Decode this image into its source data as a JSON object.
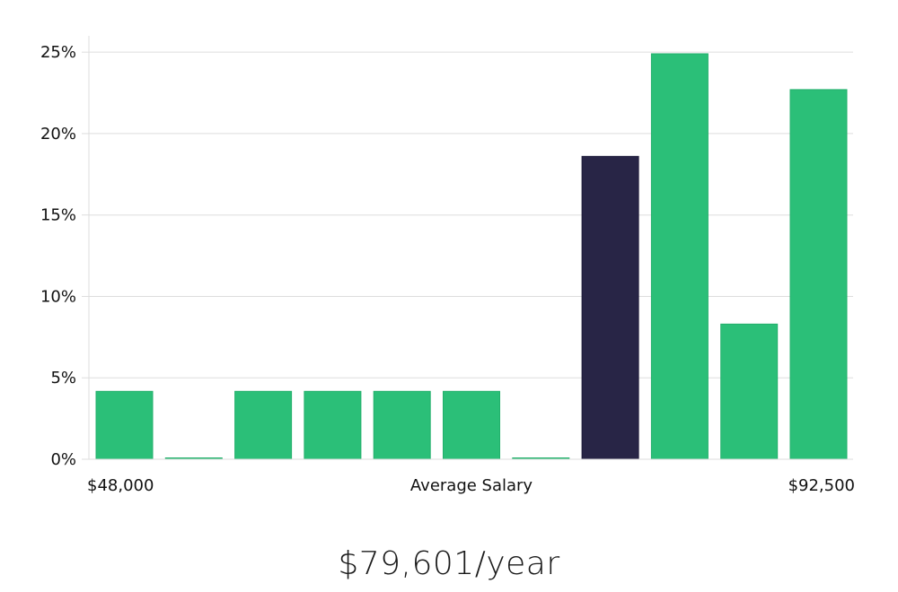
{
  "chart_data": {
    "type": "bar",
    "x_range_labels": {
      "min": "$48,000",
      "max": "$92,500"
    },
    "xlabel": "Average Salary",
    "ylabel": "",
    "ylim": [
      0,
      26
    ],
    "yticks": [
      0,
      5,
      10,
      15,
      20,
      25
    ],
    "ytick_labels": [
      "0%",
      "5%",
      "10%",
      "15%",
      "20%",
      "25%"
    ],
    "grid": true,
    "values": [
      4.17,
      0,
      4.17,
      4.17,
      4.17,
      4.17,
      0,
      18.6,
      24.9,
      8.3,
      22.7
    ],
    "highlight_index": 7,
    "colors": {
      "bar": "#2bbf78",
      "highlight": "#282546",
      "grid": "#dddddd"
    }
  },
  "summary": {
    "salary": "$79,601/year"
  }
}
